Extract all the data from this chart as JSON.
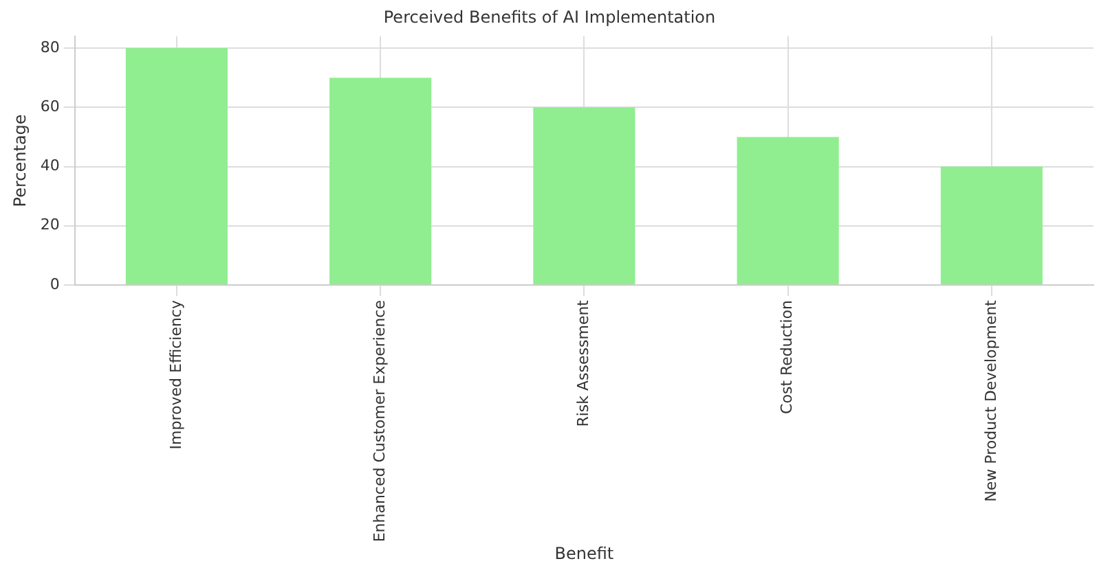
{
  "chart_data": {
    "type": "bar",
    "title": "Perceived Benefits of AI Implementation",
    "xlabel": "Benefit",
    "ylabel": "Percentage",
    "categories": [
      "Improved Efficiency",
      "Enhanced Customer Experience",
      "Risk Assessment",
      "Cost Reduction",
      "New Product Development"
    ],
    "values": [
      80,
      70,
      60,
      50,
      40
    ],
    "color": "#90ee90",
    "ylim": [
      0,
      84
    ],
    "yticks": [
      0,
      20,
      40,
      60,
      80
    ],
    "grid": true,
    "legend": false
  }
}
